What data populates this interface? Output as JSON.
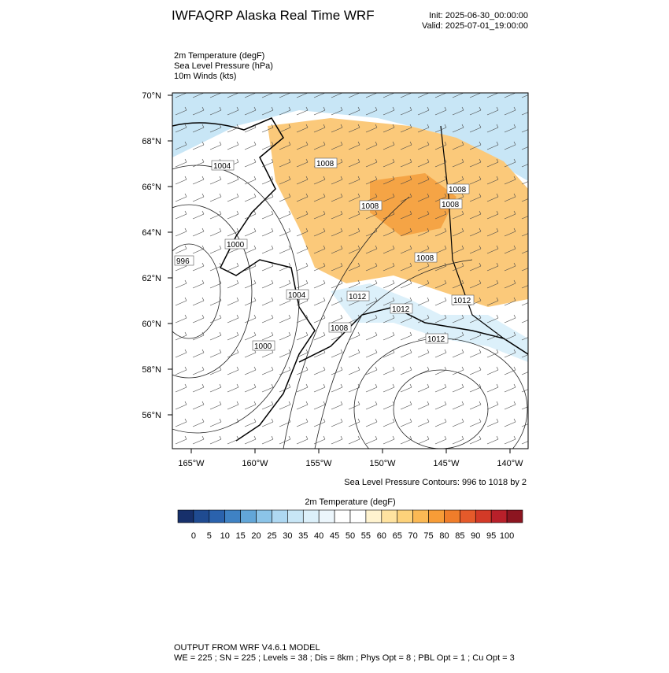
{
  "header": {
    "title": "IWFAQRP Alaska Real Time WRF",
    "init": "Init: 2025-06-30_00:00:00",
    "valid": "Valid: 2025-07-01_19:00:00"
  },
  "fields": [
    "2m Temperature   (degF)",
    "Sea Level Pressure   (hPa)",
    "10m Winds   (kts)"
  ],
  "map": {
    "lat_labels": [
      "70°N",
      "68°N",
      "66°N",
      "64°N",
      "62°N",
      "60°N",
      "58°N",
      "56°N"
    ],
    "lon_labels": [
      "165°W",
      "160°W",
      "155°W",
      "150°W",
      "145°W",
      "140°W"
    ],
    "contour_labels": [
      "1004",
      "1008",
      "1008",
      "1008",
      "1008",
      "1000",
      "996",
      "1008",
      "1004",
      "1012",
      "1012",
      "1012",
      "1008",
      "1000",
      "1012"
    ]
  },
  "contour_note": "Sea Level Pressure Contours: 996 to 1018 by 2",
  "colorbar": {
    "title": "2m Temperature  (degF)",
    "labels": [
      0,
      5,
      10,
      15,
      20,
      25,
      30,
      35,
      40,
      45,
      50,
      55,
      60,
      65,
      70,
      75,
      80,
      85,
      90,
      95,
      100
    ],
    "colors": [
      "#17306b",
      "#1f4b91",
      "#2a62ad",
      "#3f82c4",
      "#62a6d8",
      "#8bc4e8",
      "#aed8f2",
      "#c8e6f6",
      "#dcf0fa",
      "#ecf6fc",
      "#ffffff",
      "#ffffff",
      "#fff3cf",
      "#ffe3a0",
      "#fdd27a",
      "#fbb954",
      "#f79c37",
      "#f07d2a",
      "#e55a2a",
      "#d33a27",
      "#b8202a",
      "#8c1520"
    ]
  },
  "footer": {
    "line1": "OUTPUT FROM WRF V4.6.1 MODEL",
    "line2": "WE = 225 ; SN = 225 ; Levels = 38 ; Dis = 8km ; Phys Opt = 8 ; PBL Opt = 1 ; Cu Opt = 3"
  }
}
